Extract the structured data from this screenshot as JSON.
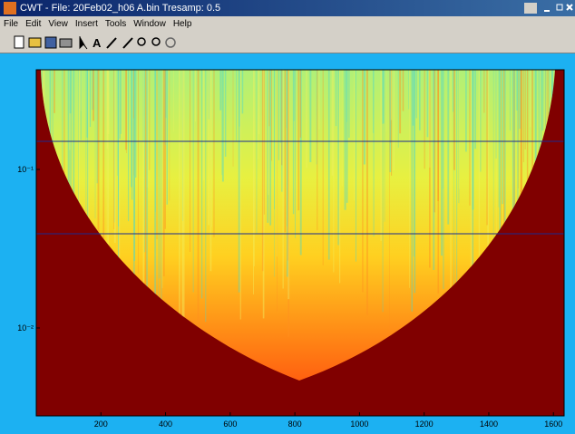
{
  "window": {
    "title": "CWT - File: 20Feb02_h06 A.bin  Tresamp: 0.5",
    "menu": [
      "File",
      "Edit",
      "View",
      "Insert",
      "Tools",
      "Window",
      "Help"
    ]
  },
  "plot": {
    "xlim": [
      0,
      1633
    ],
    "xticks": [
      200,
      400,
      600,
      800,
      1000,
      1200,
      1400,
      1600
    ],
    "ylim": [
      0.00279,
      0.425
    ],
    "log_y": true,
    "yticks": [
      {
        "value": 0.01,
        "label": "10⁻²"
      },
      {
        "value": 0.1,
        "label": "10⁻¹"
      }
    ]
  }
}
